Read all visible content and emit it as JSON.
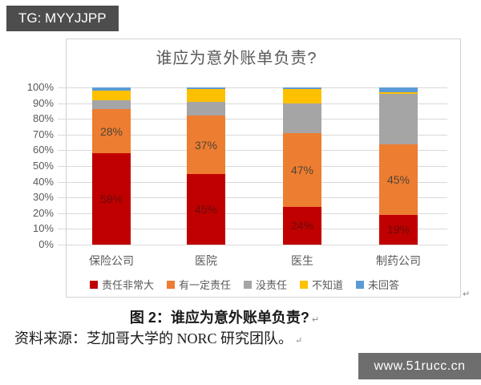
{
  "header": {
    "badge": "TG: MYYJJPP"
  },
  "watermark": {
    "text": "www.51rucc.cn"
  },
  "caption": {
    "text": "图 2：谁应为意外账单负责?",
    "mark": "↵"
  },
  "source": {
    "text": "资料来源：芝加哥大学的 NORC 研究团队。",
    "mark": "↵"
  },
  "marks": {
    "after_chart": "↵"
  },
  "colors": {
    "badge_bg": "#4d4d4d",
    "watermark_bg": "#6e6e6e",
    "gridline": "#d9d9d9",
    "axis_text": "#595959",
    "frame_border": "#d2d2d2"
  },
  "chart_data": {
    "type": "bar",
    "subtype": "100%-stacked-column",
    "title": "谁应为意外账单负责?",
    "categories": [
      "保险公司",
      "医院",
      "医生",
      "制药公司"
    ],
    "series": [
      {
        "name": "责任非常大",
        "color": "#C00000",
        "label_color": "#6b0a0a",
        "values": [
          58,
          45,
          24,
          19
        ],
        "labels": [
          "58%",
          "45%",
          "24%",
          "19%"
        ]
      },
      {
        "name": "有一定责任",
        "color": "#ED7D31",
        "label_color": "#514436",
        "values": [
          28,
          37,
          47,
          45
        ],
        "labels": [
          "28%",
          "37%",
          "47%",
          "45%"
        ]
      },
      {
        "name": "没责任",
        "color": "#A5A5A5",
        "label_color": "",
        "values": [
          6,
          9,
          19,
          32
        ],
        "labels": [
          "",
          "",
          "",
          ""
        ]
      },
      {
        "name": "不知道",
        "color": "#FFC000",
        "label_color": "",
        "values": [
          6,
          8,
          9,
          1
        ],
        "labels": [
          "",
          "",
          "",
          ""
        ]
      },
      {
        "name": "未回答",
        "color": "#5B9BD5",
        "label_color": "",
        "values": [
          2,
          1,
          1,
          3
        ],
        "labels": [
          "",
          "",
          "",
          ""
        ]
      }
    ],
    "y_ticks": [
      "100%",
      "90%",
      "80%",
      "70%",
      "60%",
      "50%",
      "40%",
      "30%",
      "20%",
      "10%",
      "0%"
    ],
    "ylim": [
      0,
      100
    ],
    "grid": true,
    "legend_position": "bottom"
  }
}
